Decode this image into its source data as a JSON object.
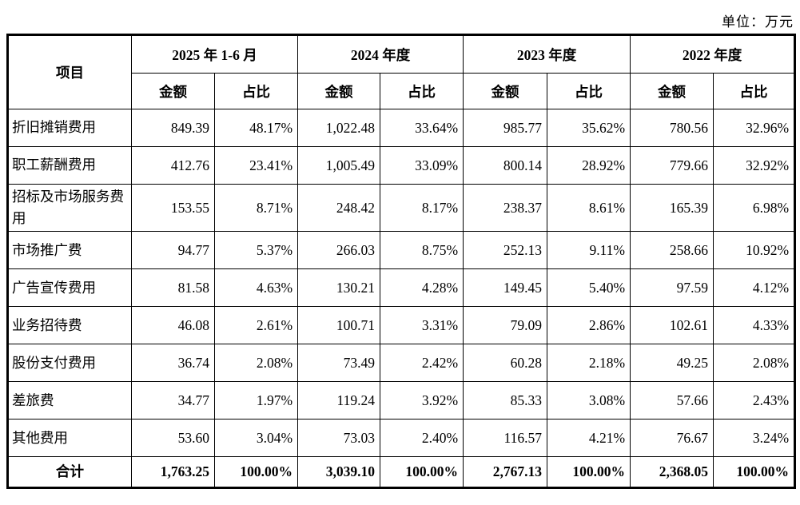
{
  "unit_label": "单位：万元",
  "colors": {
    "border": "#000000",
    "text": "#000000",
    "background": "#ffffff"
  },
  "table": {
    "item_header": "项目",
    "period_headers": [
      "2025 年 1-6 月",
      "2024 年度",
      "2023 年度",
      "2022 年度"
    ],
    "sub_headers": [
      "金额",
      "占比"
    ],
    "rows": [
      {
        "label": "折旧摊销费用",
        "values": [
          "849.39",
          "48.17%",
          "1,022.48",
          "33.64%",
          "985.77",
          "35.62%",
          "780.56",
          "32.96%"
        ]
      },
      {
        "label": "职工薪酬费用",
        "values": [
          "412.76",
          "23.41%",
          "1,005.49",
          "33.09%",
          "800.14",
          "28.92%",
          "779.66",
          "32.92%"
        ]
      },
      {
        "label": "招标及市场服务费用",
        "values": [
          "153.55",
          "8.71%",
          "248.42",
          "8.17%",
          "238.37",
          "8.61%",
          "165.39",
          "6.98%"
        ]
      },
      {
        "label": "市场推广费",
        "values": [
          "94.77",
          "5.37%",
          "266.03",
          "8.75%",
          "252.13",
          "9.11%",
          "258.66",
          "10.92%"
        ]
      },
      {
        "label": "广告宣传费用",
        "values": [
          "81.58",
          "4.63%",
          "130.21",
          "4.28%",
          "149.45",
          "5.40%",
          "97.59",
          "4.12%"
        ]
      },
      {
        "label": "业务招待费",
        "values": [
          "46.08",
          "2.61%",
          "100.71",
          "3.31%",
          "79.09",
          "2.86%",
          "102.61",
          "4.33%"
        ]
      },
      {
        "label": "股份支付费用",
        "values": [
          "36.74",
          "2.08%",
          "73.49",
          "2.42%",
          "60.28",
          "2.18%",
          "49.25",
          "2.08%"
        ]
      },
      {
        "label": "差旅费",
        "values": [
          "34.77",
          "1.97%",
          "119.24",
          "3.92%",
          "85.33",
          "3.08%",
          "57.66",
          "2.43%"
        ]
      },
      {
        "label": "其他费用",
        "values": [
          "53.60",
          "3.04%",
          "73.03",
          "2.40%",
          "116.57",
          "4.21%",
          "76.67",
          "3.24%"
        ]
      }
    ],
    "total": {
      "label": "合计",
      "values": [
        "1,763.25",
        "100.00%",
        "3,039.10",
        "100.00%",
        "2,767.13",
        "100.00%",
        "2,368.05",
        "100.00%"
      ]
    }
  }
}
